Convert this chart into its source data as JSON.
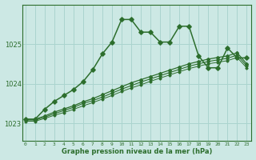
{
  "title": "Graphe pression niveau de la mer (hPa)",
  "background_color": "#cce8e4",
  "grid_color": "#aad4ce",
  "line_color": "#2d6e2d",
  "x_ticks": [
    0,
    1,
    2,
    3,
    4,
    5,
    6,
    7,
    8,
    9,
    10,
    11,
    12,
    13,
    14,
    15,
    16,
    17,
    18,
    19,
    20,
    21,
    22,
    23
  ],
  "y_ticks": [
    1023,
    1024,
    1025
  ],
  "ylim": [
    1022.55,
    1026.0
  ],
  "xlim": [
    -0.3,
    23.5
  ],
  "series": [
    {
      "x": [
        0,
        1,
        2,
        3,
        4,
        5,
        6,
        7,
        8,
        9,
        10,
        11,
        12,
        13,
        14,
        15,
        16,
        17,
        18,
        19,
        20,
        21,
        22,
        23
      ],
      "y": [
        1023.1,
        1023.1,
        1023.35,
        1023.55,
        1023.7,
        1023.85,
        1024.05,
        1024.35,
        1024.75,
        1025.05,
        1025.62,
        1025.62,
        1025.3,
        1025.3,
        1025.05,
        1025.05,
        1025.45,
        1025.45,
        1024.7,
        1024.4,
        1024.4,
        1024.9,
        1024.65,
        1024.65
      ],
      "marker": "D",
      "markersize": 2.8,
      "linewidth": 1.1
    },
    {
      "x": [
        0,
        1,
        2,
        3,
        4,
        5,
        6,
        7,
        8,
        9,
        10,
        11,
        12,
        13,
        14,
        15,
        16,
        17,
        18,
        19,
        20,
        21,
        22,
        23
      ],
      "y": [
        1023.1,
        1023.1,
        1023.18,
        1023.28,
        1023.36,
        1023.44,
        1023.54,
        1023.62,
        1023.72,
        1023.82,
        1023.92,
        1024.02,
        1024.1,
        1024.18,
        1024.26,
        1024.34,
        1024.42,
        1024.5,
        1024.56,
        1024.62,
        1024.66,
        1024.7,
        1024.78,
        1024.5
      ],
      "marker": "D",
      "markersize": 2.0,
      "linewidth": 0.9
    },
    {
      "x": [
        0,
        1,
        2,
        3,
        4,
        5,
        6,
        7,
        8,
        9,
        10,
        11,
        12,
        13,
        14,
        15,
        16,
        17,
        18,
        19,
        20,
        21,
        22,
        23
      ],
      "y": [
        1023.08,
        1023.08,
        1023.15,
        1023.24,
        1023.32,
        1023.4,
        1023.5,
        1023.57,
        1023.66,
        1023.76,
        1023.86,
        1023.95,
        1024.04,
        1024.12,
        1024.2,
        1024.28,
        1024.36,
        1024.44,
        1024.5,
        1024.56,
        1024.6,
        1024.64,
        1024.72,
        1024.45
      ],
      "marker": "D",
      "markersize": 1.8,
      "linewidth": 0.8
    },
    {
      "x": [
        0,
        1,
        2,
        3,
        4,
        5,
        6,
        7,
        8,
        9,
        10,
        11,
        12,
        13,
        14,
        15,
        16,
        17,
        18,
        19,
        20,
        21,
        22,
        23
      ],
      "y": [
        1023.05,
        1023.05,
        1023.12,
        1023.2,
        1023.27,
        1023.35,
        1023.44,
        1023.52,
        1023.61,
        1023.7,
        1023.8,
        1023.89,
        1023.97,
        1024.06,
        1024.14,
        1024.22,
        1024.3,
        1024.38,
        1024.44,
        1024.5,
        1024.54,
        1024.58,
        1024.66,
        1024.4
      ],
      "marker": "D",
      "markersize": 1.6,
      "linewidth": 0.7
    }
  ]
}
